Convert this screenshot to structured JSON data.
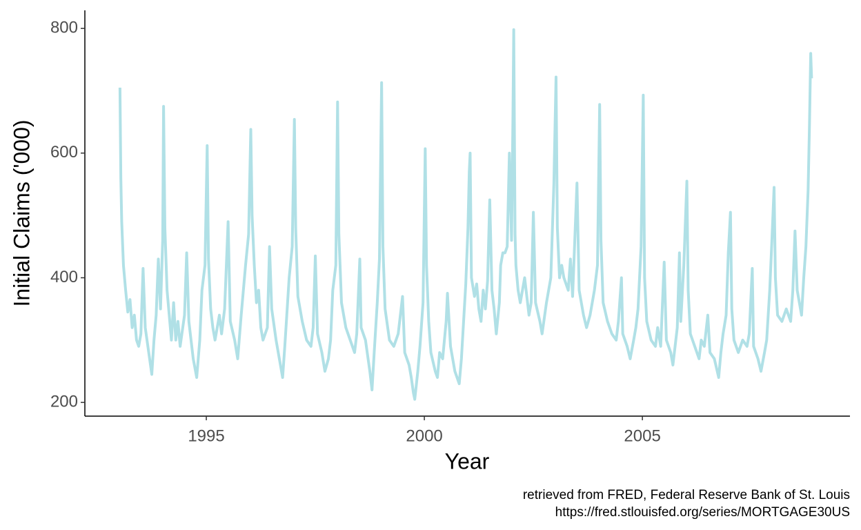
{
  "chart_data": {
    "type": "line",
    "x_label": "Year",
    "y_label": "Initial Claims ('000)",
    "caption": [
      "retrieved from FRED, Federal Reserve Bank of St. Louis",
      "https://fred.stlouisfed.org/series/MORTGAGE30US"
    ],
    "xlim": [
      1992.215,
      2009.76
    ],
    "ylim": [
      178,
      829
    ],
    "xticks": [
      1995,
      2000,
      2005
    ],
    "yticks": [
      200,
      400,
      600,
      800
    ],
    "grid": false,
    "x": [
      1993.02,
      1993.04,
      1993.06,
      1993.1,
      1993.15,
      1993.2,
      1993.25,
      1993.3,
      1993.35,
      1993.4,
      1993.45,
      1993.5,
      1993.55,
      1993.6,
      1993.7,
      1993.75,
      1993.8,
      1993.85,
      1993.9,
      1993.95,
      1994.0,
      1994.02,
      1994.05,
      1994.1,
      1994.15,
      1994.2,
      1994.25,
      1994.3,
      1994.35,
      1994.4,
      1994.5,
      1994.55,
      1994.6,
      1994.7,
      1994.78,
      1994.85,
      1994.9,
      1994.97,
      1995.02,
      1995.05,
      1995.1,
      1995.15,
      1995.2,
      1995.3,
      1995.35,
      1995.42,
      1995.5,
      1995.55,
      1995.65,
      1995.72,
      1995.8,
      1995.9,
      1995.97,
      1996.02,
      1996.05,
      1996.1,
      1996.15,
      1996.2,
      1996.25,
      1996.3,
      1996.4,
      1996.45,
      1996.5,
      1996.6,
      1996.7,
      1996.75,
      1996.8,
      1996.9,
      1996.97,
      1997.02,
      1997.05,
      1997.1,
      1997.2,
      1997.3,
      1997.4,
      1997.45,
      1997.5,
      1997.55,
      1997.65,
      1997.72,
      1997.8,
      1997.85,
      1997.9,
      1997.97,
      1998.01,
      1998.04,
      1998.1,
      1998.2,
      1998.3,
      1998.4,
      1998.45,
      1998.52,
      1998.55,
      1998.65,
      1998.75,
      1998.8,
      1998.85,
      1998.92,
      1998.97,
      1999.02,
      1999.05,
      1999.1,
      1999.2,
      1999.3,
      1999.4,
      1999.5,
      1999.55,
      1999.65,
      1999.7,
      1999.75,
      1999.78,
      1999.85,
      1999.9,
      1999.97,
      2000.02,
      2000.05,
      2000.1,
      2000.15,
      2000.25,
      2000.3,
      2000.35,
      2000.42,
      2000.5,
      2000.53,
      2000.6,
      2000.7,
      2000.8,
      2000.85,
      2000.9,
      2000.95,
      2001.0,
      2001.03,
      2001.05,
      2001.08,
      2001.15,
      2001.2,
      2001.25,
      2001.3,
      2001.35,
      2001.4,
      2001.45,
      2001.5,
      2001.55,
      2001.6,
      2001.65,
      2001.72,
      2001.75,
      2001.8,
      2001.85,
      2001.9,
      2001.95,
      2002.0,
      2002.03,
      2002.05,
      2002.08,
      2002.1,
      2002.15,
      2002.2,
      2002.3,
      2002.35,
      2002.4,
      2002.45,
      2002.5,
      2002.55,
      2002.65,
      2002.7,
      2002.8,
      2002.85,
      2002.9,
      2002.97,
      2003.02,
      2003.05,
      2003.1,
      2003.15,
      2003.2,
      2003.3,
      2003.35,
      2003.4,
      2003.5,
      2003.55,
      2003.65,
      2003.72,
      2003.8,
      2003.9,
      2003.97,
      2004.02,
      2004.05,
      2004.1,
      2004.2,
      2004.3,
      2004.4,
      2004.45,
      2004.52,
      2004.55,
      2004.65,
      2004.72,
      2004.8,
      2004.85,
      2004.9,
      2004.97,
      2005.02,
      2005.05,
      2005.1,
      2005.2,
      2005.3,
      2005.35,
      2005.42,
      2005.5,
      2005.55,
      2005.65,
      2005.7,
      2005.75,
      2005.8,
      2005.85,
      2005.88,
      2005.95,
      2006.02,
      2006.05,
      2006.1,
      2006.2,
      2006.3,
      2006.35,
      2006.42,
      2006.5,
      2006.55,
      2006.65,
      2006.75,
      2006.8,
      2006.85,
      2006.92,
      2006.97,
      2007.02,
      2007.05,
      2007.1,
      2007.2,
      2007.3,
      2007.4,
      2007.45,
      2007.52,
      2007.55,
      2007.65,
      2007.72,
      2007.8,
      2007.85,
      2007.92,
      2007.97,
      2008.02,
      2008.05,
      2008.1,
      2008.2,
      2008.3,
      2008.35,
      2008.4,
      2008.45,
      2008.5,
      2008.55,
      2008.6,
      2008.65,
      2008.7,
      2008.75,
      2008.8,
      2008.83,
      2008.86,
      2008.88
    ],
    "series": [
      {
        "color": "#b0e0e6",
        "values": [
          705,
          560,
          490,
          420,
          380,
          345,
          365,
          320,
          340,
          300,
          290,
          310,
          415,
          320,
          270,
          245,
          300,
          340,
          430,
          350,
          460,
          675,
          480,
          380,
          340,
          300,
          360,
          300,
          330,
          290,
          340,
          440,
          330,
          270,
          240,
          300,
          380,
          420,
          612,
          430,
          350,
          320,
          300,
          340,
          310,
          350,
          490,
          330,
          300,
          270,
          340,
          420,
          470,
          638,
          500,
          420,
          360,
          380,
          320,
          300,
          320,
          450,
          350,
          300,
          260,
          240,
          290,
          400,
          450,
          654,
          480,
          370,
          330,
          300,
          290,
          320,
          435,
          310,
          280,
          250,
          270,
          300,
          380,
          420,
          682,
          470,
          360,
          320,
          300,
          280,
          310,
          430,
          320,
          300,
          250,
          220,
          280,
          360,
          430,
          713,
          450,
          350,
          300,
          290,
          310,
          370,
          280,
          260,
          240,
          215,
          205,
          250,
          290,
          360,
          607,
          420,
          330,
          280,
          250,
          240,
          280,
          270,
          330,
          375,
          290,
          250,
          230,
          270,
          330,
          390,
          480,
          570,
          600,
          400,
          370,
          390,
          350,
          330,
          380,
          350,
          395,
          525,
          380,
          350,
          310,
          360,
          420,
          440,
          440,
          450,
          600,
          460,
          650,
          798,
          470,
          420,
          380,
          360,
          400,
          370,
          340,
          360,
          505,
          360,
          330,
          310,
          360,
          380,
          400,
          550,
          722,
          480,
          400,
          420,
          400,
          380,
          430,
          370,
          552,
          380,
          340,
          320,
          340,
          380,
          420,
          678,
          460,
          360,
          330,
          310,
          300,
          330,
          400,
          310,
          290,
          270,
          300,
          320,
          350,
          450,
          693,
          400,
          330,
          300,
          290,
          320,
          290,
          425,
          300,
          280,
          260,
          290,
          320,
          440,
          330,
          420,
          555,
          380,
          310,
          290,
          270,
          300,
          290,
          340,
          280,
          270,
          240,
          280,
          310,
          340,
          440,
          505,
          350,
          300,
          280,
          300,
          290,
          310,
          415,
          290,
          270,
          250,
          280,
          300,
          380,
          460,
          545,
          400,
          340,
          330,
          350,
          340,
          330,
          380,
          475,
          380,
          360,
          340,
          400,
          450,
          540,
          640,
          760,
          720
        ]
      }
    ]
  }
}
